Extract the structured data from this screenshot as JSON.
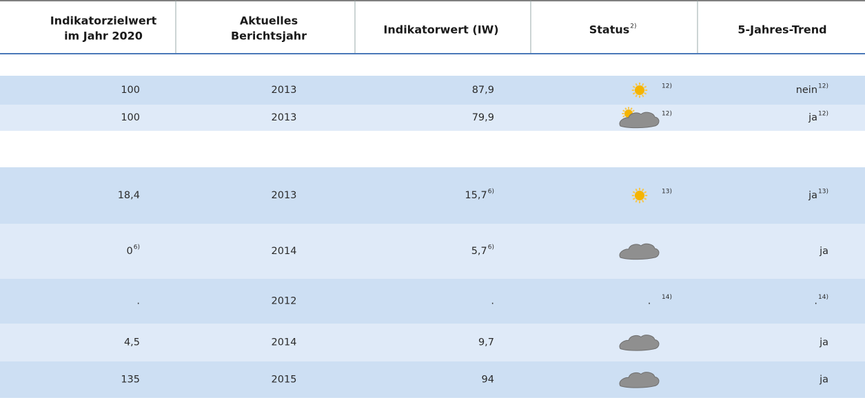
{
  "table": {
    "header": [
      {
        "lines": [
          "Indikatorzielwert",
          "im Jahr 2020"
        ]
      },
      {
        "lines": [
          "Aktuelles",
          "Berichtsjahr"
        ]
      },
      {
        "lines": [
          "Indikatorwert (IW)"
        ]
      },
      {
        "lines": [
          "Status"
        ],
        "note": "2)"
      },
      {
        "lines": [
          "5-Jahres-Trend"
        ]
      }
    ],
    "rows": [
      {
        "target": {
          "text": "100"
        },
        "year": "2013",
        "value": {
          "text": "87,9"
        },
        "status": {
          "icon": "sun",
          "note": "12)"
        },
        "trend": {
          "text": "nein",
          "note": "12)"
        }
      },
      {
        "target": {
          "text": "100"
        },
        "year": "2013",
        "value": {
          "text": "79,9"
        },
        "status": {
          "icon": "sun-cloud",
          "note": "12)"
        },
        "trend": {
          "text": "ja",
          "note": "12)"
        }
      },
      {
        "target": {
          "text": "18,4"
        },
        "year": "2013",
        "value": {
          "text": "15,7",
          "note": "6)"
        },
        "status": {
          "icon": "sun",
          "note": "13)"
        },
        "trend": {
          "text": "ja",
          "note": "13)"
        }
      },
      {
        "target": {
          "text": "0",
          "note": "6)"
        },
        "year": "2014",
        "value": {
          "text": "5,7",
          "note": "6)"
        },
        "status": {
          "icon": "cloud"
        },
        "trend": {
          "text": "ja"
        }
      },
      {
        "target": {
          "text": "."
        },
        "year": "2012",
        "value": {
          "text": "."
        },
        "status": {
          "text": ".",
          "note": "14)"
        },
        "trend": {
          "text": ".",
          "note": "14)"
        }
      },
      {
        "target": {
          "text": "4,5"
        },
        "year": "2014",
        "value": {
          "text": "9,7"
        },
        "status": {
          "icon": "cloud"
        },
        "trend": {
          "text": "ja"
        }
      },
      {
        "target": {
          "text": "135"
        },
        "year": "2015",
        "value": {
          "text": "94"
        },
        "status": {
          "icon": "cloud"
        },
        "trend": {
          "text": "ja"
        }
      }
    ]
  }
}
